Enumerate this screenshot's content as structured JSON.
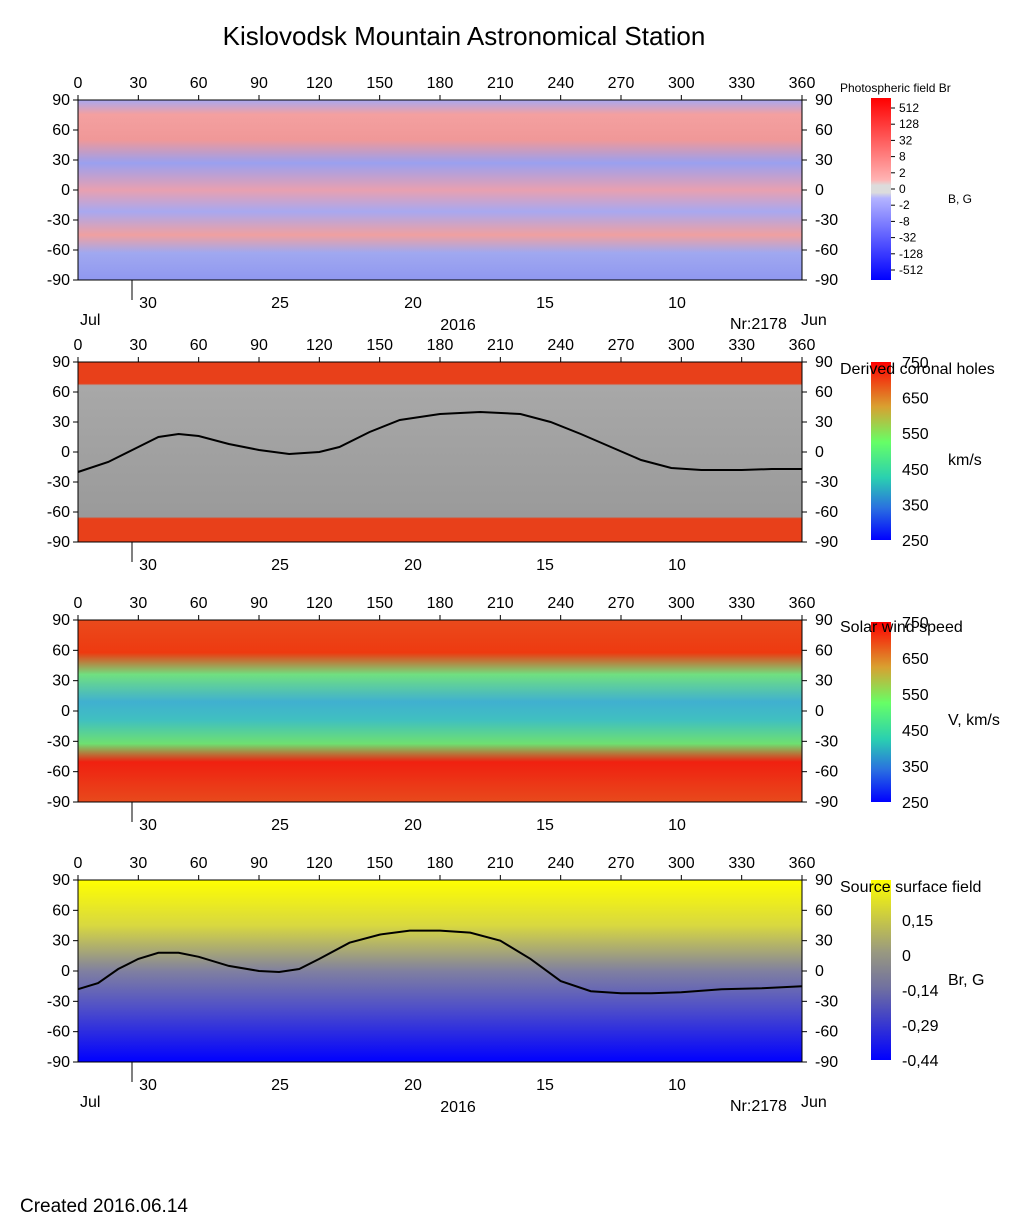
{
  "title": "Kislovodsk Mountain Astronomical Station",
  "footer": "Created  2016.06.14",
  "chart_data": [
    {
      "type": "heatmap",
      "name": "photospheric",
      "legend_title": "Photospheric field Br",
      "unit_label": "B, G",
      "xlim": [
        0,
        360
      ],
      "ylim": [
        -90,
        90
      ],
      "x_ticks": [
        0,
        30,
        60,
        90,
        120,
        150,
        180,
        210,
        240,
        270,
        300,
        330,
        360
      ],
      "y_ticks": [
        90,
        60,
        30,
        0,
        -30,
        -60,
        -90
      ],
      "date_ticks": [
        "30",
        "25",
        "20",
        "15",
        "10"
      ],
      "month_left": "Jul",
      "month_right": "Jun",
      "year": "2016",
      "rotation": "Nr:2178",
      "colorbar_labels": [
        "512",
        "128",
        "32",
        "8",
        "2",
        "0",
        "-2",
        "-8",
        "-32",
        "-128",
        "-512"
      ],
      "colorbar_colors": [
        "#ff0000",
        "#ff2a2a",
        "#ff5a5a",
        "#ff8a8a",
        "#ffb4b4",
        "#dcdcdc",
        "#b4b4ff",
        "#8a8aff",
        "#5a5aff",
        "#2a2aff",
        "#0000ff"
      ]
    },
    {
      "type": "heatmap",
      "name": "coronal-holes",
      "legend_title": "Derived coronal holes",
      "unit_label": "km/s",
      "xlim": [
        0,
        360
      ],
      "ylim": [
        -90,
        90
      ],
      "x_ticks": [
        0,
        30,
        60,
        90,
        120,
        150,
        180,
        210,
        240,
        270,
        300,
        330,
        360
      ],
      "y_ticks": [
        90,
        60,
        30,
        0,
        -30,
        -60,
        -90
      ],
      "date_ticks": [
        "30",
        "25",
        "20",
        "15",
        "10"
      ],
      "colorbar_labels": [
        "750",
        "650",
        "550",
        "450",
        "350",
        "250"
      ],
      "neutral_line": [
        [
          0,
          -20
        ],
        [
          15,
          -10
        ],
        [
          30,
          5
        ],
        [
          40,
          15
        ],
        [
          50,
          18
        ],
        [
          60,
          16
        ],
        [
          75,
          8
        ],
        [
          90,
          2
        ],
        [
          105,
          -2
        ],
        [
          120,
          0
        ],
        [
          130,
          5
        ],
        [
          145,
          20
        ],
        [
          160,
          32
        ],
        [
          180,
          38
        ],
        [
          200,
          40
        ],
        [
          220,
          38
        ],
        [
          235,
          30
        ],
        [
          250,
          18
        ],
        [
          265,
          5
        ],
        [
          280,
          -8
        ],
        [
          295,
          -16
        ],
        [
          310,
          -18
        ],
        [
          330,
          -18
        ],
        [
          345,
          -17
        ],
        [
          360,
          -17
        ]
      ]
    },
    {
      "type": "heatmap",
      "name": "solar-wind",
      "legend_title": "Solar wind speed",
      "unit_label": "V, km/s",
      "xlim": [
        0,
        360
      ],
      "ylim": [
        -90,
        90
      ],
      "x_ticks": [
        0,
        30,
        60,
        90,
        120,
        150,
        180,
        210,
        240,
        270,
        300,
        330,
        360
      ],
      "y_ticks": [
        90,
        60,
        30,
        0,
        -30,
        -60,
        -90
      ],
      "date_ticks": [
        "30",
        "25",
        "20",
        "15",
        "10"
      ],
      "colorbar_labels": [
        "750",
        "650",
        "550",
        "450",
        "350",
        "250"
      ]
    },
    {
      "type": "heatmap",
      "name": "source-surface",
      "legend_title": "Source surface field",
      "unit_label": "Br, G",
      "xlim": [
        0,
        360
      ],
      "ylim": [
        -90,
        90
      ],
      "x_ticks": [
        0,
        30,
        60,
        90,
        120,
        150,
        180,
        210,
        240,
        270,
        300,
        330,
        360
      ],
      "y_ticks": [
        90,
        60,
        30,
        0,
        -30,
        -60,
        -90
      ],
      "date_ticks": [
        "30",
        "25",
        "20",
        "15",
        "10"
      ],
      "month_left": "Jul",
      "month_right": "Jun",
      "year": "2016",
      "rotation": "Nr:2178",
      "colorbar_labels": [
        "0,15",
        "0",
        "-0,14",
        "-0,29",
        "-0,44"
      ],
      "neutral_line": [
        [
          0,
          -18
        ],
        [
          10,
          -12
        ],
        [
          20,
          2
        ],
        [
          30,
          12
        ],
        [
          40,
          18
        ],
        [
          50,
          18
        ],
        [
          60,
          14
        ],
        [
          75,
          5
        ],
        [
          90,
          0
        ],
        [
          100,
          -1
        ],
        [
          110,
          2
        ],
        [
          120,
          12
        ],
        [
          135,
          28
        ],
        [
          150,
          36
        ],
        [
          165,
          40
        ],
        [
          180,
          40
        ],
        [
          195,
          38
        ],
        [
          210,
          30
        ],
        [
          225,
          12
        ],
        [
          240,
          -10
        ],
        [
          255,
          -20
        ],
        [
          270,
          -22
        ],
        [
          285,
          -22
        ],
        [
          300,
          -21
        ],
        [
          320,
          -18
        ],
        [
          340,
          -17
        ],
        [
          360,
          -15
        ]
      ]
    }
  ]
}
